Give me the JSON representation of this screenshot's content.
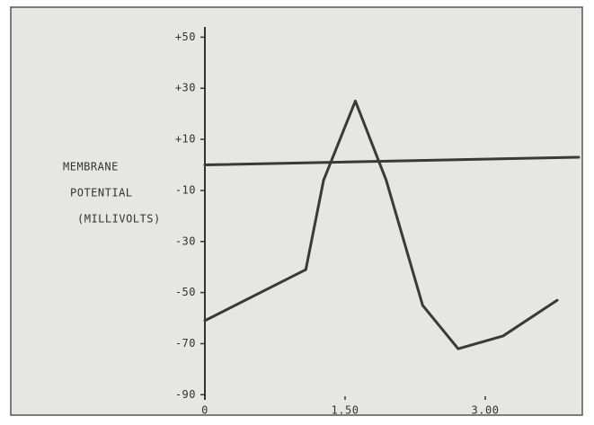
{
  "chart_data": {
    "type": "line",
    "ylabel": [
      "MEMBRANE",
      "POTENTIAL",
      "(MILLIVOLTS)"
    ],
    "x": [
      0,
      1.08,
      1.27,
      1.61,
      1.94,
      2.33,
      2.71,
      3.19,
      3.77
    ],
    "series": [
      {
        "color": "#3a3a3a",
        "values": [
          -61,
          -41,
          -6,
          25,
          -6,
          -55,
          -72,
          -67,
          -53
        ]
      },
      {
        "color": "#3a3a3a",
        "x": [
          0,
          4
        ],
        "values": [
          0,
          3
        ]
      }
    ],
    "xlim": [
      0,
      4
    ],
    "ylim": [
      -92,
      54
    ],
    "xticks": [
      0,
      {
        "value": 1.5,
        "label": "1.50"
      },
      {
        "value": 3,
        "label": "3.00"
      }
    ],
    "yticks": [
      {
        "value": 50,
        "label": "+50"
      },
      {
        "value": 30,
        "label": "+30"
      },
      {
        "value": 10,
        "label": "+10"
      },
      -10,
      -30,
      -50,
      -70,
      -90
    ]
  }
}
